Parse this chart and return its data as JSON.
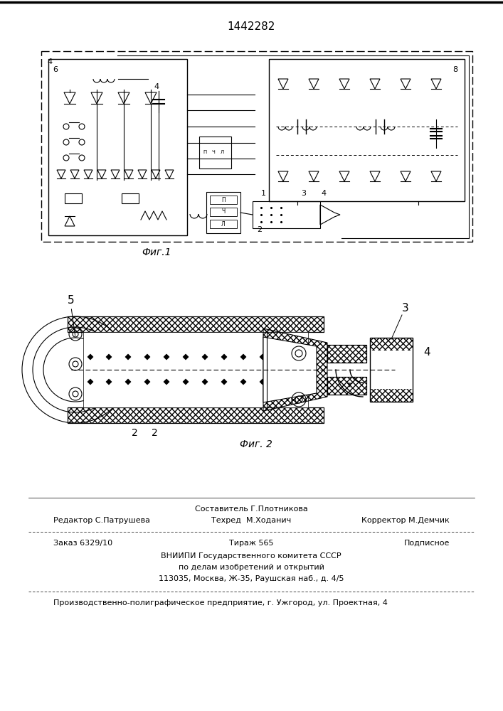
{
  "patent_number": "1442282",
  "fig1_label": "Фиг.1",
  "fig2_label": "Фиг. 2",
  "footer_line1_left": "Редактор С.Патрушева",
  "footer_line1_center_top": "Составитель Г.Плотникова",
  "footer_line1_center": "Техред  М.Ходанич",
  "footer_line1_right": "Корректор М.Демчик",
  "footer_line2_left": "Заказ 6329/10",
  "footer_line2_center": "Тираж 565",
  "footer_line2_right": "Подписное",
  "footer_line3": "ВНИИПИ Государственного комитета СССР",
  "footer_line4": "по делам изобретений и открытий",
  "footer_line5": "113035, Москва, Ж-35, Раушская наб., д. 4/5",
  "footer_bottom": "Производственно-полиграфическое предприятие, г. Ужгород, ул. Проектная, 4",
  "bg_color": "#ffffff",
  "text_color": "#000000"
}
